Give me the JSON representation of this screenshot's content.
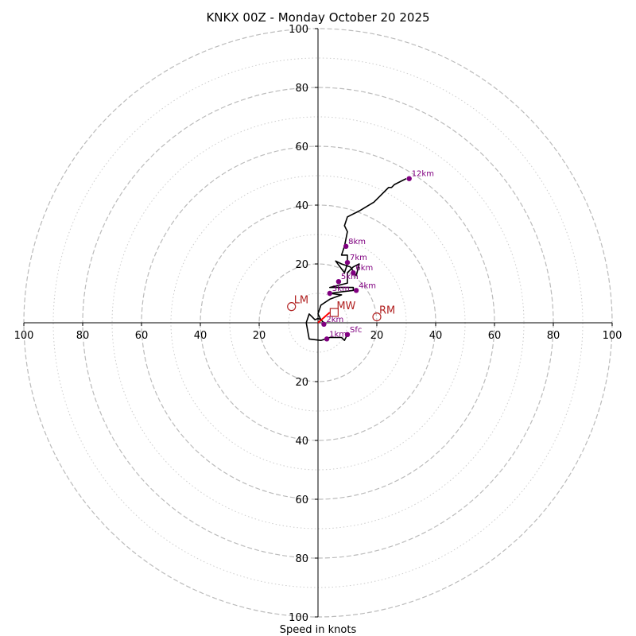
{
  "chart_data": {
    "type": "line",
    "subtype": "hodograph",
    "title": "KNKX 00Z - Monday October 20 2025",
    "xlabel": "Speed in knots",
    "ylabel": "",
    "range_knots": [
      -100,
      100
    ],
    "ring_major_knots": [
      20,
      40,
      60,
      80,
      100
    ],
    "ring_minor_knots": [
      10,
      30,
      50,
      70,
      90
    ],
    "x_tick_labels": [
      "100",
      "80",
      "60",
      "40",
      "20",
      "20",
      "40",
      "60",
      "80",
      "100"
    ],
    "x_tick_values": [
      -100,
      -80,
      -60,
      -40,
      -20,
      20,
      40,
      60,
      80,
      100
    ],
    "y_tick_labels": [
      "100",
      "80",
      "60",
      "40",
      "20",
      "20",
      "40",
      "60",
      "80",
      "100"
    ],
    "y_tick_values": [
      100,
      80,
      60,
      40,
      20,
      -20,
      -40,
      -60,
      -80,
      -100
    ],
    "grid": true,
    "colors": {
      "trace": "#000000",
      "height_marker": "#800080",
      "motion": "#b22222",
      "shear_vector": "#ff0000",
      "grid": "#bbbbbb"
    },
    "trace_uv": [
      [
        10,
        -4
      ],
      [
        9,
        -6
      ],
      [
        8,
        -5
      ],
      [
        4,
        -5
      ],
      [
        1,
        -6
      ],
      [
        -3,
        -5.5
      ],
      [
        -4,
        0
      ],
      [
        -3,
        3
      ],
      [
        -2,
        2
      ],
      [
        -1,
        1
      ],
      [
        0,
        1.5
      ],
      [
        1,
        1
      ],
      [
        2,
        0
      ],
      [
        1,
        1
      ],
      [
        0,
        3
      ],
      [
        1,
        6
      ],
      [
        4,
        8
      ],
      [
        8,
        9.5
      ],
      [
        4,
        10
      ],
      [
        8,
        10.5
      ],
      [
        12,
        11
      ],
      [
        12,
        12
      ],
      [
        8,
        12
      ],
      [
        4,
        12
      ],
      [
        6,
        12.5
      ],
      [
        10,
        13.5
      ],
      [
        10,
        17
      ],
      [
        12,
        19
      ],
      [
        14,
        20
      ],
      [
        13,
        16
      ],
      [
        11,
        19
      ],
      [
        8,
        20
      ],
      [
        6,
        21
      ],
      [
        9,
        17
      ],
      [
        10,
        20
      ],
      [
        10,
        23
      ],
      [
        8,
        23
      ],
      [
        9,
        26
      ],
      [
        10,
        31
      ],
      [
        9,
        33
      ],
      [
        10,
        36
      ],
      [
        14,
        38
      ],
      [
        19,
        41
      ],
      [
        21,
        43
      ],
      [
        23,
        45
      ],
      [
        24,
        46
      ],
      [
        25,
        46
      ],
      [
        26,
        47
      ],
      [
        28,
        48
      ],
      [
        30,
        49
      ]
    ],
    "height_points": [
      {
        "label": "Sfc",
        "u": 10,
        "v": -4
      },
      {
        "label": "1km",
        "u": 3,
        "v": -5.5
      },
      {
        "label": "2km",
        "u": 2,
        "v": -0.5
      },
      {
        "label": "3km",
        "u": 4,
        "v": 10
      },
      {
        "label": "4km",
        "u": 13,
        "v": 11
      },
      {
        "label": "5km",
        "u": 7,
        "v": 14
      },
      {
        "label": "6km",
        "u": 12,
        "v": 17
      },
      {
        "label": "7km",
        "u": 10,
        "v": 20.5
      },
      {
        "label": "8km",
        "u": 9.5,
        "v": 26
      },
      {
        "label": "12km",
        "u": 31,
        "v": 49
      }
    ],
    "storm_motion": [
      {
        "label": "LM",
        "u": -9,
        "v": 5.5,
        "marker": "circle"
      },
      {
        "label": "RM",
        "u": 20,
        "v": 2,
        "marker": "circle"
      },
      {
        "label": "MW",
        "u": 5.5,
        "v": 3.5,
        "marker": "square"
      }
    ],
    "shear_vector": {
      "from": [
        0,
        0
      ],
      "to": [
        4,
        3.5
      ]
    }
  }
}
